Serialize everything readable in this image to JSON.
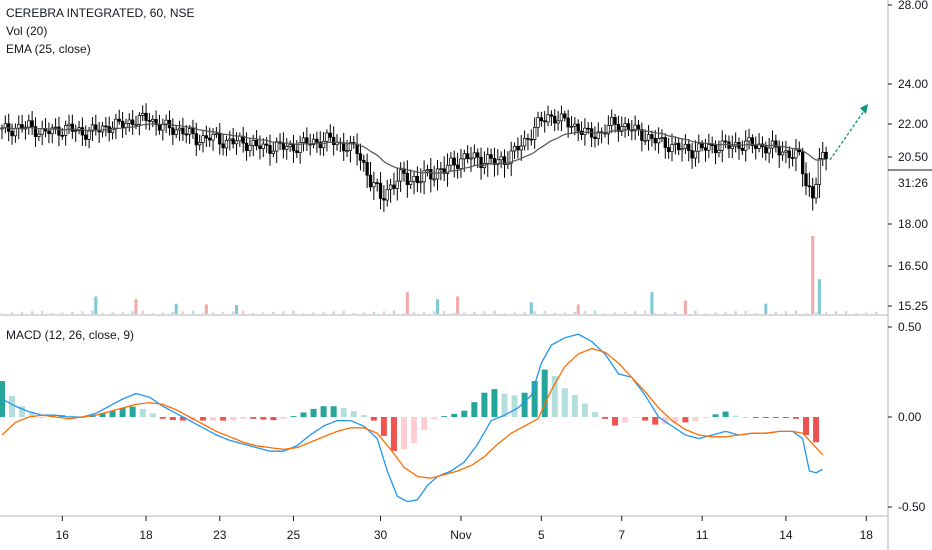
{
  "legend": {
    "symbol": "CEREBRA INTEGRATED, 60, NSE",
    "vol": "Vol (20)",
    "ema": "EMA (25, close)",
    "macd": "MACD (12, 26, close, 9)"
  },
  "countdown_label": "31:26",
  "colors": {
    "up": "#26a69a",
    "down": "#ef5350",
    "vol_up": "#7fc8d6",
    "vol_down": "#f4a9a9",
    "ema": "#000000",
    "macd_line": "#2196f3",
    "signal_line": "#ff6d00",
    "hist_up_strong": "#26a69a",
    "hist_up_weak": "#b2dfdb",
    "hist_down_strong": "#ef5350",
    "hist_down_weak": "#ffcdd2",
    "arrow": "#089981",
    "axis_text": "#131722",
    "grid": "#e0e3eb"
  },
  "chart_data": [
    {
      "type": "candlestick",
      "pane": "price",
      "title": "CEREBRA INTEGRATED, 60, NSE",
      "y_axis_labels": [
        "28.00",
        "24.00",
        "22.00",
        "20.50",
        "18.00",
        "16.50",
        "15.25"
      ],
      "ylim": [
        14.8,
        28.2
      ],
      "last_price": "20.50",
      "x_axis_labels": [
        "16",
        "18",
        "23",
        "25",
        "30",
        "Nov",
        "5",
        "7",
        "11",
        "14",
        "18"
      ],
      "x_tick_index": [
        18,
        43,
        65,
        87,
        113,
        137,
        161,
        185,
        209,
        234,
        258
      ],
      "ema_period": 25,
      "close_path": [
        [
          0,
          21.7
        ],
        [
          4,
          21.8
        ],
        [
          8,
          21.9
        ],
        [
          12,
          21.6
        ],
        [
          16,
          21.7
        ],
        [
          20,
          21.8
        ],
        [
          24,
          21.6
        ],
        [
          28,
          21.7
        ],
        [
          32,
          21.9
        ],
        [
          36,
          22.0
        ],
        [
          40,
          22.2
        ],
        [
          44,
          22.3
        ],
        [
          46,
          22.0
        ],
        [
          50,
          21.8
        ],
        [
          54,
          21.7
        ],
        [
          58,
          21.3
        ],
        [
          62,
          21.4
        ],
        [
          66,
          21.2
        ],
        [
          70,
          21.2
        ],
        [
          74,
          21.1
        ],
        [
          78,
          20.9
        ],
        [
          82,
          21.0
        ],
        [
          86,
          20.9
        ],
        [
          90,
          21.1
        ],
        [
          94,
          21.2
        ],
        [
          98,
          21.3
        ],
        [
          102,
          21.0
        ],
        [
          106,
          20.8
        ],
        [
          110,
          19.6
        ],
        [
          113,
          19.0
        ],
        [
          116,
          19.4
        ],
        [
          120,
          19.8
        ],
        [
          124,
          19.6
        ],
        [
          128,
          19.9
        ],
        [
          132,
          20.0
        ],
        [
          136,
          20.4
        ],
        [
          140,
          20.5
        ],
        [
          144,
          20.4
        ],
        [
          148,
          20.3
        ],
        [
          152,
          20.6
        ],
        [
          156,
          21.2
        ],
        [
          160,
          22.0
        ],
        [
          163,
          22.4
        ],
        [
          167,
          22.2
        ],
        [
          171,
          21.9
        ],
        [
          175,
          21.5
        ],
        [
          179,
          21.6
        ],
        [
          182,
          22.0
        ],
        [
          186,
          21.9
        ],
        [
          190,
          21.6
        ],
        [
          194,
          21.3
        ],
        [
          198,
          21.1
        ],
        [
          202,
          20.9
        ],
        [
          206,
          20.8
        ],
        [
          210,
          20.9
        ],
        [
          214,
          21.0
        ],
        [
          218,
          21.0
        ],
        [
          222,
          21.1
        ],
        [
          226,
          21.0
        ],
        [
          230,
          20.9
        ],
        [
          234,
          20.7
        ],
        [
          238,
          20.5
        ],
        [
          240,
          19.6
        ],
        [
          242,
          19.0
        ],
        [
          244,
          20.3
        ],
        [
          246,
          20.5
        ]
      ],
      "volume_spikes": [
        [
          28,
          0.16
        ],
        [
          40,
          0.12
        ],
        [
          52,
          0.06
        ],
        [
          61,
          0.05
        ],
        [
          70,
          0.04
        ],
        [
          121,
          0.22
        ],
        [
          130,
          0.12
        ],
        [
          136,
          0.16
        ],
        [
          158,
          0.08
        ],
        [
          172,
          0.05
        ],
        [
          194,
          0.22
        ],
        [
          204,
          0.1
        ],
        [
          228,
          0.06
        ],
        [
          242,
          1.0
        ],
        [
          244,
          0.4
        ]
      ]
    },
    {
      "type": "line",
      "pane": "macd",
      "title": "MACD (12, 26, close, 9)",
      "y_axis_labels": [
        "0.50",
        "0.00",
        "-0.50"
      ],
      "ylim": [
        -0.58,
        0.56
      ],
      "series": [
        {
          "name": "MACD",
          "points": [
            [
              0,
              0.1
            ],
            [
              4,
              0.06
            ],
            [
              8,
              0.03
            ],
            [
              12,
              0.01
            ],
            [
              16,
              0.01
            ],
            [
              20,
              0.0
            ],
            [
              24,
              0.0
            ],
            [
              28,
              0.02
            ],
            [
              32,
              0.06
            ],
            [
              36,
              0.1
            ],
            [
              40,
              0.13
            ],
            [
              44,
              0.11
            ],
            [
              48,
              0.06
            ],
            [
              52,
              0.02
            ],
            [
              56,
              -0.02
            ],
            [
              60,
              -0.06
            ],
            [
              64,
              -0.1
            ],
            [
              68,
              -0.13
            ],
            [
              72,
              -0.15
            ],
            [
              76,
              -0.17
            ],
            [
              80,
              -0.19
            ],
            [
              84,
              -0.19
            ],
            [
              88,
              -0.16
            ],
            [
              92,
              -0.1
            ],
            [
              96,
              -0.05
            ],
            [
              100,
              -0.02
            ],
            [
              104,
              -0.02
            ],
            [
              108,
              -0.05
            ],
            [
              112,
              -0.12
            ],
            [
              115,
              -0.3
            ],
            [
              118,
              -0.44
            ],
            [
              121,
              -0.47
            ],
            [
              124,
              -0.46
            ],
            [
              127,
              -0.38
            ],
            [
              130,
              -0.33
            ],
            [
              134,
              -0.3
            ],
            [
              138,
              -0.25
            ],
            [
              142,
              -0.15
            ],
            [
              146,
              -0.02
            ],
            [
              150,
              0.01
            ],
            [
              154,
              0.05
            ],
            [
              158,
              0.12
            ],
            [
              161,
              0.3
            ],
            [
              164,
              0.4
            ],
            [
              168,
              0.44
            ],
            [
              172,
              0.46
            ],
            [
              176,
              0.42
            ],
            [
              180,
              0.35
            ],
            [
              184,
              0.24
            ],
            [
              188,
              0.22
            ],
            [
              192,
              0.12
            ],
            [
              196,
              0.0
            ],
            [
              200,
              -0.05
            ],
            [
              204,
              -0.1
            ],
            [
              208,
              -0.12
            ],
            [
              212,
              -0.1
            ],
            [
              216,
              -0.08
            ],
            [
              220,
              -0.1
            ],
            [
              224,
              -0.09
            ],
            [
              228,
              -0.09
            ],
            [
              232,
              -0.08
            ],
            [
              236,
              -0.08
            ],
            [
              239,
              -0.12
            ],
            [
              241,
              -0.3
            ],
            [
              243,
              -0.31
            ],
            [
              245,
              -0.29
            ]
          ]
        },
        {
          "name": "Signal",
          "points": [
            [
              0,
              -0.1
            ],
            [
              4,
              -0.03
            ],
            [
              8,
              0.0
            ],
            [
              12,
              0.01
            ],
            [
              16,
              0.0
            ],
            [
              20,
              -0.01
            ],
            [
              24,
              0.0
            ],
            [
              28,
              0.01
            ],
            [
              32,
              0.03
            ],
            [
              36,
              0.05
            ],
            [
              40,
              0.07
            ],
            [
              44,
              0.08
            ],
            [
              48,
              0.07
            ],
            [
              52,
              0.04
            ],
            [
              56,
              0.0
            ],
            [
              60,
              -0.04
            ],
            [
              64,
              -0.08
            ],
            [
              68,
              -0.11
            ],
            [
              72,
              -0.14
            ],
            [
              76,
              -0.16
            ],
            [
              80,
              -0.17
            ],
            [
              84,
              -0.18
            ],
            [
              88,
              -0.17
            ],
            [
              92,
              -0.14
            ],
            [
              96,
              -0.11
            ],
            [
              100,
              -0.08
            ],
            [
              104,
              -0.06
            ],
            [
              108,
              -0.06
            ],
            [
              112,
              -0.09
            ],
            [
              116,
              -0.18
            ],
            [
              120,
              -0.28
            ],
            [
              124,
              -0.33
            ],
            [
              128,
              -0.34
            ],
            [
              132,
              -0.32
            ],
            [
              136,
              -0.3
            ],
            [
              140,
              -0.27
            ],
            [
              144,
              -0.22
            ],
            [
              148,
              -0.15
            ],
            [
              152,
              -0.09
            ],
            [
              156,
              -0.05
            ],
            [
              160,
              -0.01
            ],
            [
              164,
              0.15
            ],
            [
              168,
              0.28
            ],
            [
              172,
              0.35
            ],
            [
              176,
              0.38
            ],
            [
              180,
              0.36
            ],
            [
              184,
              0.3
            ],
            [
              188,
              0.22
            ],
            [
              192,
              0.14
            ],
            [
              196,
              0.05
            ],
            [
              200,
              -0.02
            ],
            [
              204,
              -0.07
            ],
            [
              208,
              -0.1
            ],
            [
              212,
              -0.11
            ],
            [
              216,
              -0.11
            ],
            [
              220,
              -0.1
            ],
            [
              224,
              -0.09
            ],
            [
              228,
              -0.09
            ],
            [
              232,
              -0.08
            ],
            [
              236,
              -0.08
            ],
            [
              239,
              -0.09
            ],
            [
              242,
              -0.15
            ],
            [
              245,
              -0.21
            ]
          ]
        }
      ]
    }
  ]
}
